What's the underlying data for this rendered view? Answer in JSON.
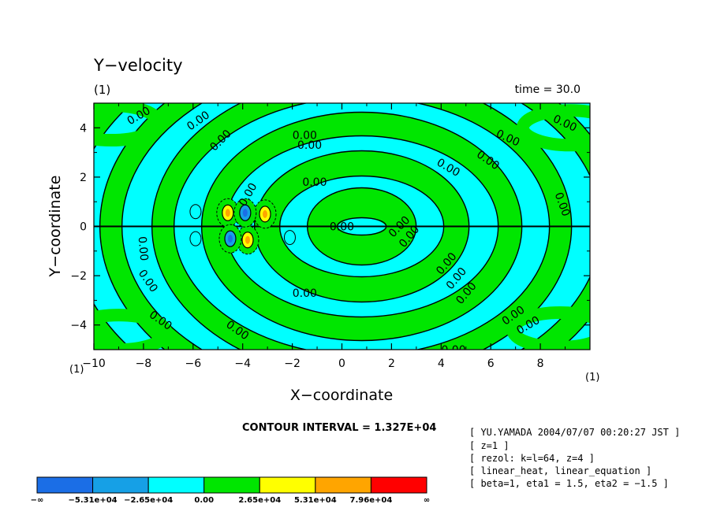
{
  "chart_data": {
    "type": "contour",
    "title": "Y−velocity",
    "subtitle_left": "(1)",
    "time_label": "time = 30.0",
    "xlabel": "X−coordinate",
    "ylabel": "Y−coordinate",
    "x_unit": "(1)",
    "y_unit": "(1)",
    "xlim": [
      -10,
      10
    ],
    "ylim": [
      -5,
      5
    ],
    "x_ticks": [
      "−10",
      "−8",
      "−6",
      "−4",
      "−2",
      "0",
      "2",
      "4",
      "6",
      "8"
    ],
    "y_ticks": [
      "4",
      "2",
      "0",
      "−2",
      "−4"
    ],
    "contour_label": "0.00",
    "contour_interval_text": "CONTOUR INTERVAL = 1.327E+04",
    "legend": {
      "colors": [
        "#1b6ee6",
        "#16a0e6",
        "#00ffff",
        "#00e600",
        "#ffff00",
        "#ffa500",
        "#ff0000"
      ],
      "labels": [
        "−∞",
        "−5.31e+04",
        "−2.65e+04",
        "0.00",
        "2.65e+04",
        "5.31e+04",
        "7.96e+04",
        "∞"
      ]
    },
    "info_lines": [
      "[ YU.YAMADA 2004/07/07 00:20:27 JST ]",
      "[ z=1 ]",
      "[ rezol: k=l=64, z=4 ]",
      "[ linear_heat, linear_equation ]",
      "[ beta=1, eta1 = 1.5, eta2 = −1.5 ]"
    ]
  }
}
